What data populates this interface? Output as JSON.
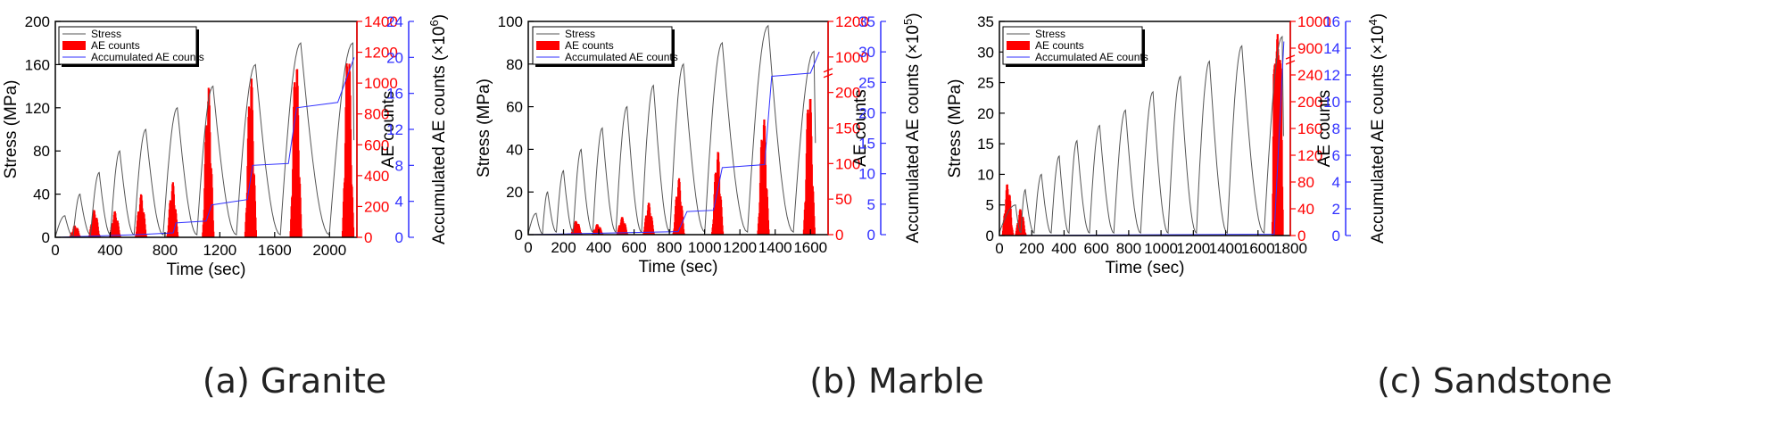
{
  "colors": {
    "stress": "#555555",
    "ae": "#ff0000",
    "acc": "#3030ff",
    "axis": "#000000"
  },
  "chart_data": [
    {
      "type": "line",
      "caption": "(a) Granite",
      "xlabel": "Time (sec)",
      "ylabel": "Stress (MPa)",
      "ylabel2": "AE counts",
      "ylabel3": "Accumulated AE counts (×10",
      "ylabel3_exp": "6",
      "ylabel3_end": ")",
      "xlim": [
        0,
        2200
      ],
      "xticks": [
        "0",
        "400",
        "800",
        "1200",
        "1600",
        "2000"
      ],
      "ylim": [
        0,
        200
      ],
      "yticks": [
        "0",
        "40",
        "80",
        "120",
        "160",
        "200"
      ],
      "y2lim": [
        0,
        1400
      ],
      "y2ticks": [
        "0",
        "200",
        "400",
        "600",
        "800",
        "1000",
        "1200",
        "1400"
      ],
      "y3lim": [
        0,
        24
      ],
      "y3ticks": [
        "0",
        "4",
        "8",
        "12",
        "16",
        "20",
        "24"
      ],
      "legend": [
        "Stress",
        "AE counts",
        "Accumulated AE counts"
      ],
      "stress_peaks": [
        [
          70,
          20
        ],
        [
          180,
          40
        ],
        [
          320,
          60
        ],
        [
          470,
          80
        ],
        [
          660,
          100
        ],
        [
          890,
          120
        ],
        [
          1150,
          140
        ],
        [
          1460,
          160
        ],
        [
          1790,
          180
        ],
        [
          2170,
          180
        ]
      ],
      "ae_bursts": [
        [
          180,
          80
        ],
        [
          320,
          180
        ],
        [
          470,
          170
        ],
        [
          660,
          280
        ],
        [
          890,
          360
        ],
        [
          1150,
          1000
        ],
        [
          1460,
          1080
        ],
        [
          1790,
          1200
        ],
        [
          2170,
          1280
        ]
      ],
      "accumulated": [
        [
          0,
          0
        ],
        [
          600,
          0.3
        ],
        [
          860,
          0.5
        ],
        [
          880,
          1.6
        ],
        [
          1100,
          1.8
        ],
        [
          1140,
          3.6
        ],
        [
          1400,
          4.2
        ],
        [
          1440,
          8.0
        ],
        [
          1700,
          8.2
        ],
        [
          1760,
          14.4
        ],
        [
          2060,
          15.0
        ],
        [
          2180,
          20.0
        ]
      ]
    },
    {
      "type": "line",
      "caption": "(b) Marble",
      "xlabel": "Time (sec)",
      "ylabel": "Stress (MPa)",
      "ylabel2": "AE counts",
      "ylabel3": "Accumulated AE counts (×10",
      "ylabel3_exp": "5",
      "ylabel3_end": ")",
      "xlim": [
        0,
        1700
      ],
      "xticks": [
        "0",
        "200",
        "400",
        "600",
        "800",
        "1000",
        "1200",
        "1400",
        "1600"
      ],
      "ylim": [
        0,
        100
      ],
      "yticks": [
        "0",
        "20",
        "40",
        "60",
        "80",
        "100"
      ],
      "y2lim": [
        0,
        1200
      ],
      "y2ticks": [
        "0",
        "50",
        "100",
        "150",
        "200",
        "1000",
        "1200"
      ],
      "y2break": "220 to 900",
      "y3lim": [
        0,
        35
      ],
      "y3ticks": [
        "0",
        "5",
        "10",
        "15",
        "20",
        "25",
        "30",
        "35"
      ],
      "legend": [
        "Stress",
        "AE counts",
        "Accumulated AE counts"
      ],
      "stress_peaks": [
        [
          45,
          10
        ],
        [
          110,
          20
        ],
        [
          200,
          30
        ],
        [
          300,
          40
        ],
        [
          420,
          50
        ],
        [
          560,
          60
        ],
        [
          710,
          70
        ],
        [
          880,
          80
        ],
        [
          1100,
          90
        ],
        [
          1360,
          98
        ],
        [
          1620,
          86
        ]
      ],
      "ae_bursts": [
        [
          300,
          20
        ],
        [
          420,
          15
        ],
        [
          560,
          25
        ],
        [
          710,
          45
        ],
        [
          880,
          80
        ],
        [
          1100,
          120
        ],
        [
          1360,
          170
        ],
        [
          1620,
          210
        ]
      ],
      "accumulated": [
        [
          0,
          0
        ],
        [
          850,
          0.5
        ],
        [
          900,
          3.8
        ],
        [
          1050,
          4.0
        ],
        [
          1100,
          11.0
        ],
        [
          1340,
          11.5
        ],
        [
          1380,
          26.0
        ],
        [
          1600,
          26.5
        ],
        [
          1650,
          30.0
        ]
      ]
    },
    {
      "type": "line",
      "caption": "(c) Sandstone",
      "xlabel": "Time (sec)",
      "ylabel": "Stress (MPa)",
      "ylabel2": "AE counts",
      "ylabel3": "Accumulated AE counts (×10",
      "ylabel3_exp": "4",
      "ylabel3_end": ")",
      "xlim": [
        0,
        1800
      ],
      "xticks": [
        "0",
        "200",
        "400",
        "600",
        "800",
        "1000",
        "1200",
        "1400",
        "1600",
        "1800"
      ],
      "ylim": [
        0,
        35
      ],
      "yticks": [
        "0",
        "5",
        "10",
        "15",
        "20",
        "25",
        "30",
        "35"
      ],
      "y2lim": [
        0,
        1000
      ],
      "y2ticks": [
        "0",
        "40",
        "80",
        "120",
        "160",
        "200",
        "240",
        "900",
        "1000"
      ],
      "y2break": "260 to 850",
      "y3lim": [
        0,
        16
      ],
      "y3ticks": [
        "0",
        "2",
        "4",
        "6",
        "8",
        "10",
        "12",
        "14",
        "16"
      ],
      "legend": [
        "Stress",
        "AE counts",
        "Accumulated AE counts"
      ],
      "stress_peaks": [
        [
          100,
          5
        ],
        [
          160,
          7.5
        ],
        [
          260,
          10
        ],
        [
          370,
          13
        ],
        [
          480,
          15.5
        ],
        [
          620,
          18
        ],
        [
          780,
          20.5
        ],
        [
          950,
          23.5
        ],
        [
          1120,
          26
        ],
        [
          1300,
          28.5
        ],
        [
          1500,
          31
        ],
        [
          1750,
          32.5
        ]
      ],
      "ae_bursts": [
        [
          80,
          80
        ],
        [
          160,
          40
        ],
        [
          1750,
          960
        ]
      ],
      "accumulated": [
        [
          0,
          0
        ],
        [
          1700,
          0.1
        ],
        [
          1760,
          14.5
        ]
      ]
    }
  ]
}
